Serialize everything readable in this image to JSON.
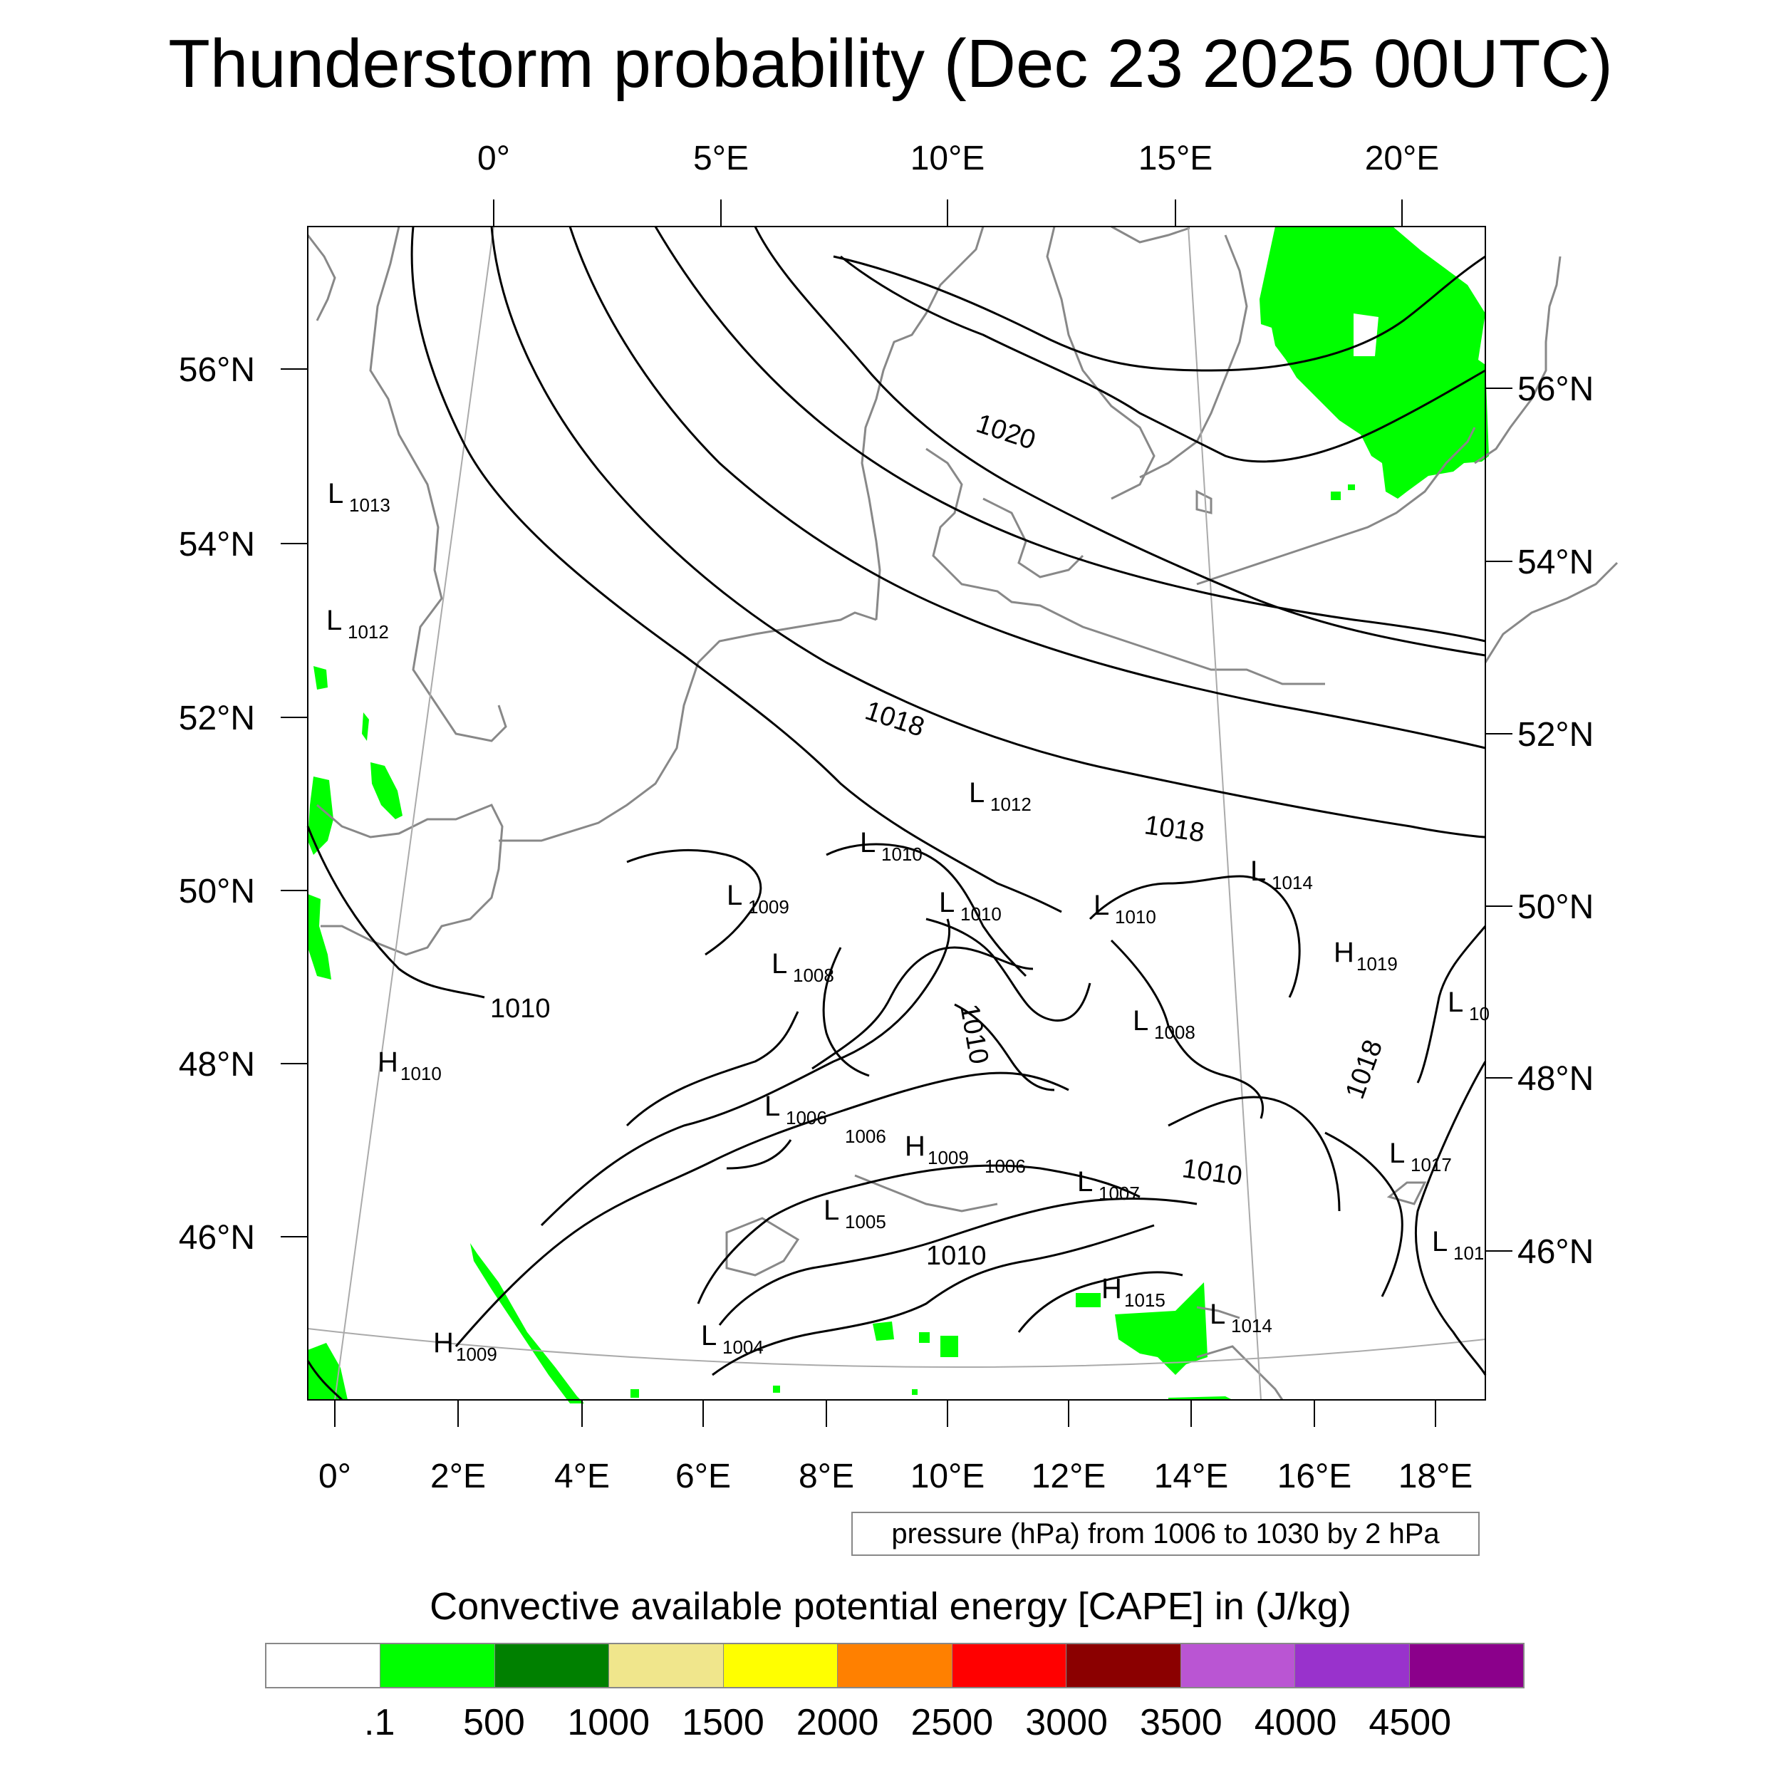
{
  "title": "Thunderstorm probability (Dec 23 2025 00UTC)",
  "map": {
    "top_lon_labels": [
      "0°",
      "5°E",
      "10°E",
      "15°E",
      "20°E"
    ],
    "bottom_lon_labels": [
      "0°",
      "2°E",
      "4°E",
      "6°E",
      "8°E",
      "10°E",
      "12°E",
      "14°E",
      "16°E",
      "18°E"
    ],
    "left_lat_labels": [
      "56°N",
      "54°N",
      "52°N",
      "50°N",
      "48°N",
      "46°N"
    ],
    "right_lat_labels": [
      "56°N",
      "54°N",
      "52°N",
      "50°N",
      "48°N",
      "46°N"
    ],
    "contour_labels": [
      "1020",
      "1018",
      "1018",
      "1010",
      "1010",
      "1018",
      "1010",
      "1010"
    ],
    "pressure_centers": [
      {
        "type": "L",
        "value": "1013"
      },
      {
        "type": "L",
        "value": "1012"
      },
      {
        "type": "L",
        "value": "1012"
      },
      {
        "type": "L",
        "value": "1010"
      },
      {
        "type": "L",
        "value": "1014"
      },
      {
        "type": "L",
        "value": "1009"
      },
      {
        "type": "L",
        "value": "1010"
      },
      {
        "type": "L",
        "value": "1010"
      },
      {
        "type": "H",
        "value": "1019"
      },
      {
        "type": "L",
        "value": "1008"
      },
      {
        "type": "L",
        "value": "10"
      },
      {
        "type": "L",
        "value": "1008"
      },
      {
        "type": "H",
        "value": "1010"
      },
      {
        "type": "L",
        "value": "1006"
      },
      {
        "type": "H",
        "value": "1009"
      },
      {
        "type": "L",
        "value": "1017"
      },
      {
        "type": "L",
        "value": "1007"
      },
      {
        "type": "L",
        "value": "1005"
      },
      {
        "type": "L",
        "value": "101"
      },
      {
        "type": "H",
        "value": "1015"
      },
      {
        "type": "L",
        "value": "1014"
      },
      {
        "type": "H",
        "value": "1009"
      },
      {
        "type": "L",
        "value": "1004"
      }
    ],
    "inline_values": [
      "1006",
      "1006"
    ],
    "colors": {
      "cape_fill": "#00ff00",
      "isobar": "#000000",
      "coastline": "#888888",
      "graticule": "#aaaaaa"
    }
  },
  "info_box": "pressure (hPa) from 1006 to 1030 by 2 hPa",
  "colorbar": {
    "title": "Convective available potential energy [CAPE] in (J/kg)",
    "colors": [
      "#ffffff",
      "#00ff00",
      "#008000",
      "#f0e68c",
      "#ffff00",
      "#ff8000",
      "#ff0000",
      "#8b0000",
      "#ba55d3",
      "#9932cc",
      "#8b008b"
    ],
    "labels": [
      ".1",
      "500",
      "1000",
      "1500",
      "2000",
      "2500",
      "3000",
      "3500",
      "4000",
      "4500"
    ]
  }
}
